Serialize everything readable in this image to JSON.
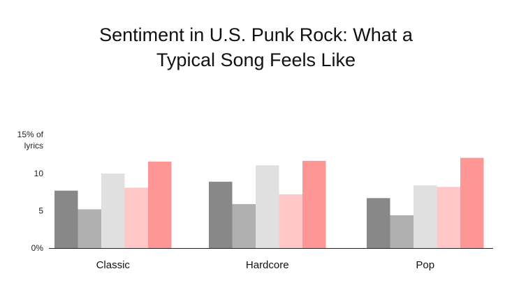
{
  "chart_data": {
    "type": "bar",
    "title_line1": "Sentiment in U.S. Punk Rock: What a",
    "title_line2": "Typical Song Feels Like",
    "y_unit_line1": "15% of",
    "y_unit_line2": "lyrics",
    "categories": [
      "Classic",
      "Hardcore",
      "Pop"
    ],
    "ylim": [
      0,
      15
    ],
    "yticks": [
      {
        "value": 0,
        "label": "0%"
      },
      {
        "value": 5,
        "label": "5"
      },
      {
        "value": 10,
        "label": "10"
      }
    ],
    "series": [
      {
        "color": "#888888",
        "values": [
          7.7,
          8.9,
          6.7
        ]
      },
      {
        "color": "#b0b0b0",
        "values": [
          5.2,
          5.9,
          4.4
        ]
      },
      {
        "color": "#e0e0e0",
        "values": [
          10.0,
          11.1,
          8.4
        ]
      },
      {
        "color": "#ffc7c7",
        "values": [
          8.1,
          7.2,
          8.2
        ]
      },
      {
        "color": "#ff9696",
        "values": [
          11.6,
          11.7,
          12.1
        ]
      }
    ],
    "grid": false,
    "legend": "none"
  }
}
